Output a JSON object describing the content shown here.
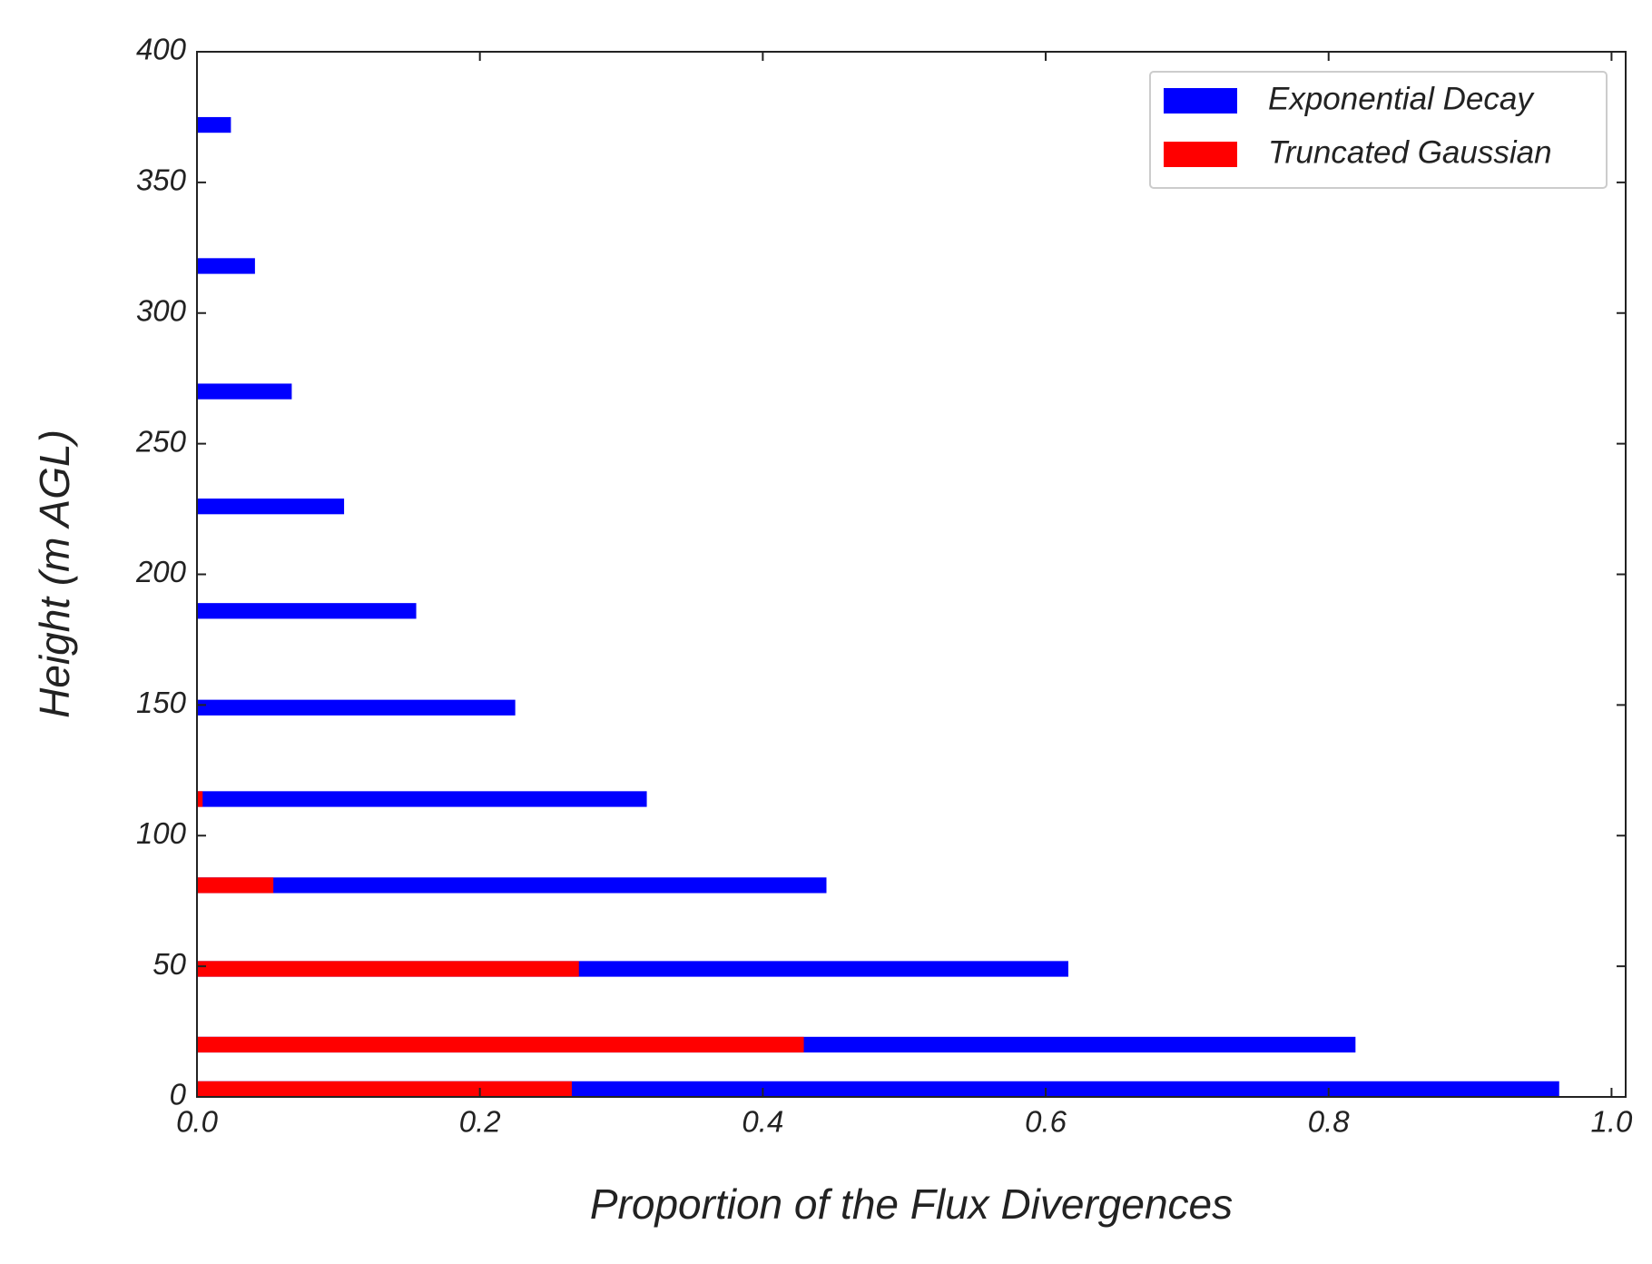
{
  "chart_data": {
    "type": "barh",
    "xlabel": "Proportion of the Flux Divergences",
    "ylabel": "Height (m AGL)",
    "heights": [
      3,
      20,
      49,
      81,
      114,
      149,
      186,
      226,
      270,
      318,
      372
    ],
    "bar_thickness": 6,
    "series": [
      {
        "name": "Exponential Decay",
        "color": "#0000ff",
        "values": [
          0.963,
          0.819,
          0.616,
          0.445,
          0.318,
          0.225,
          0.155,
          0.104,
          0.067,
          0.041,
          0.024
        ]
      },
      {
        "name": "Truncated Gaussian",
        "color": "#ff0000",
        "values": [
          0.265,
          0.429,
          0.27,
          0.054,
          0.004,
          0,
          0,
          0,
          0,
          0,
          0
        ]
      }
    ],
    "xlim": [
      0,
      1.01
    ],
    "xticks": [
      {
        "value": 0,
        "label": "0.0"
      },
      0.2,
      0.4,
      0.6,
      0.8,
      {
        "value": 1,
        "label": "1.0"
      }
    ],
    "ylim": [
      0,
      400
    ],
    "yticks": [
      0,
      50,
      100,
      150,
      200,
      250,
      300,
      350,
      400
    ],
    "grid": false,
    "legend": "upper right"
  }
}
